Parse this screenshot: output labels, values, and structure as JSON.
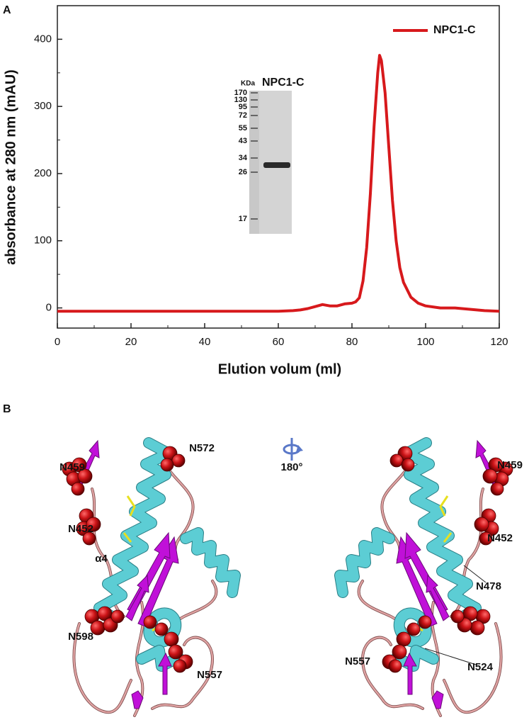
{
  "chart_data": {
    "type": "line",
    "panel_label": "A",
    "x_label": "Elution volum (ml)",
    "y_label": "absorbance at 280 nm (mAU)",
    "x": [
      0,
      10,
      20,
      30,
      40,
      50,
      60,
      64,
      66,
      68,
      70,
      72,
      74,
      76,
      78,
      80,
      81,
      82,
      83,
      84,
      85,
      86,
      87,
      87.5,
      88,
      89,
      90,
      91,
      92,
      93,
      94,
      96,
      98,
      100,
      104,
      108,
      112,
      116,
      120
    ],
    "series": [
      {
        "name": "NPC1-C",
        "color": "#d7191c",
        "values": [
          -5,
          -5,
          -5,
          -5,
          -5,
          -5,
          -5,
          -4,
          -3,
          -1,
          2,
          5,
          3,
          3,
          6,
          7,
          9,
          15,
          40,
          90,
          170,
          270,
          350,
          376,
          368,
          320,
          240,
          160,
          100,
          60,
          38,
          16,
          7,
          3,
          0,
          0,
          -2,
          -4,
          -5
        ]
      }
    ],
    "xlim": [
      0,
      120
    ],
    "ylim": [
      -30,
      450
    ],
    "xticks": [
      0,
      20,
      40,
      60,
      80,
      100,
      120
    ],
    "yticks": [
      0,
      100,
      200,
      300,
      400
    ],
    "legend": "upper right",
    "inset": {
      "unit_label": "KDa",
      "lane_label": "NPC1-C",
      "marker_labels": [
        "170",
        "130",
        "95",
        "72",
        "55",
        "43",
        "34",
        "26",
        "17"
      ]
    }
  },
  "panel_b": {
    "panel_label": "B",
    "rotation_label": "180°",
    "left_labels": [
      "N459",
      "N572",
      "N452",
      "α4",
      "N598",
      "N557"
    ],
    "right_labels": [
      "N459",
      "N452",
      "N478",
      "N557",
      "N524"
    ]
  }
}
